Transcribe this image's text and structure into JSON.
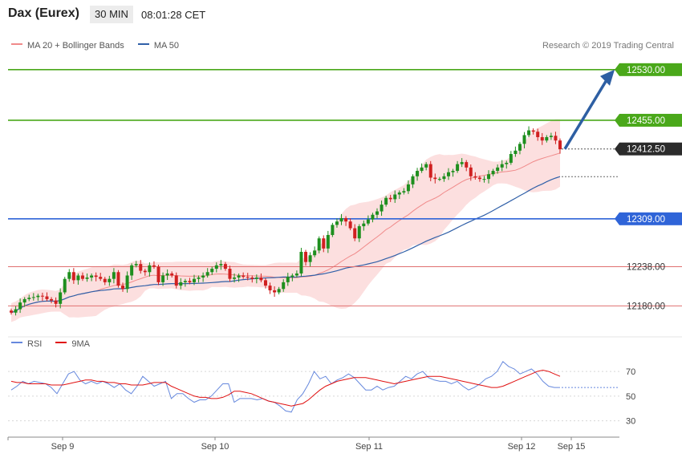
{
  "header": {
    "instrument": "Dax (Eurex)",
    "timeframe": "30 MIN",
    "time": "08:01:28 CET"
  },
  "legend": {
    "bands_label": "MA 20 + Bollinger Bands",
    "ma50_label": "MA 50",
    "rsi_label": "RSI",
    "rsi_ma_label": "9MA",
    "copyright": "Research © 2019 Trading Central"
  },
  "colors": {
    "up": "#1e8f1e",
    "down": "#d02020",
    "ma20": "#f08a8a",
    "band_fill": "#fbd4d4",
    "ma50": "#3060a8",
    "green_level": "#4aa81a",
    "blue_level": "#2f64d8",
    "red_level": "#e07070",
    "rsi": "#6688dd",
    "rsi_ma": "#e01010",
    "arrow": "#2e5fa3"
  },
  "chart_data": [
    {
      "type": "line",
      "subtype": "candlestick",
      "x_ticks": [
        "Sep 9",
        "Sep 10",
        "Sep 11",
        "Sep 12",
        "Sep 15"
      ],
      "ylim": [
        12140,
        12550
      ],
      "levels": [
        {
          "value": 12530,
          "label": "12530.00",
          "kind": "resistance"
        },
        {
          "value": 12455,
          "label": "12455.00",
          "kind": "resistance"
        },
        {
          "value": 12412.5,
          "label": "12412.50",
          "kind": "last"
        },
        {
          "value": 12309,
          "label": "12309.00",
          "kind": "pivot"
        },
        {
          "value": 12238,
          "label": "12238.00",
          "kind": "support"
        },
        {
          "value": 12180,
          "label": "12180.00",
          "kind": "support"
        }
      ],
      "target_arrow": {
        "from": 12412.5,
        "to": 12530
      },
      "closes": [
        12170,
        12175,
        12185,
        12190,
        12192,
        12193,
        12195,
        12194,
        12190,
        12188,
        12183,
        12200,
        12220,
        12230,
        12218,
        12225,
        12220,
        12222,
        12225,
        12223,
        12220,
        12215,
        12220,
        12230,
        12210,
        12205,
        12225,
        12240,
        12242,
        12232,
        12230,
        12240,
        12238,
        12215,
        12225,
        12228,
        12225,
        12210,
        12215,
        12217,
        12215,
        12220,
        12222,
        12225,
        12230,
        12235,
        12240,
        12242,
        12235,
        12220,
        12222,
        12225,
        12223,
        12222,
        12220,
        12222,
        12218,
        12210,
        12203,
        12200,
        12205,
        12215,
        12223,
        12225,
        12228,
        12260,
        12245,
        12255,
        12262,
        12280,
        12265,
        12285,
        12300,
        12305,
        12310,
        12305,
        12295,
        12280,
        12298,
        12302,
        12308,
        12315,
        12320,
        12330,
        12340,
        12338,
        12345,
        12348,
        12350,
        12360,
        12372,
        12380,
        12385,
        12390,
        12370,
        12368,
        12368,
        12372,
        12378,
        12380,
        12390,
        12393,
        12385,
        12372,
        12370,
        12368,
        12368,
        12375,
        12380,
        12385,
        12390,
        12392,
        12405,
        12410,
        12420,
        12433,
        12440,
        12438,
        12430,
        12425,
        12430,
        12432,
        12425,
        12412
      ]
    },
    {
      "type": "line",
      "series": [
        {
          "name": "RSI",
          "values": [
            55,
            58,
            62,
            60,
            62,
            61,
            60,
            57,
            52,
            60,
            68,
            70,
            63,
            60,
            62,
            60,
            62,
            60,
            57,
            60,
            55,
            52,
            58,
            66,
            62,
            58,
            60,
            62,
            48,
            52,
            52,
            48,
            45,
            47,
            47,
            50,
            55,
            60,
            60,
            45,
            48,
            48,
            48,
            47,
            48,
            46,
            45,
            42,
            38,
            37,
            47,
            52,
            60,
            70,
            64,
            66,
            60,
            63,
            65,
            68,
            65,
            60,
            55,
            55,
            58,
            55,
            57,
            58,
            62,
            66,
            64,
            68,
            70,
            65,
            63,
            62,
            62,
            60,
            62,
            58,
            55,
            57,
            60,
            64,
            66,
            70,
            78,
            74,
            72,
            68,
            70,
            72,
            68,
            62,
            58,
            57,
            57
          ]
        },
        {
          "name": "9MA",
          "values": [
            62,
            61,
            61,
            60,
            60,
            60,
            60,
            59,
            59,
            59,
            60,
            61,
            62,
            63,
            63,
            62,
            62,
            61,
            61,
            60,
            60,
            59,
            59,
            59,
            60,
            61,
            61,
            61,
            58,
            56,
            54,
            52,
            50,
            49,
            49,
            48,
            48,
            49,
            51,
            54,
            54,
            53,
            52,
            50,
            48,
            46,
            45,
            44,
            43,
            42,
            43,
            44,
            47,
            51,
            55,
            58,
            60,
            62,
            63,
            64,
            65,
            65,
            65,
            64,
            63,
            62,
            61,
            60,
            61,
            62,
            63,
            64,
            65,
            66,
            66,
            66,
            65,
            64,
            63,
            62,
            61,
            60,
            59,
            58,
            57,
            57,
            58,
            60,
            62,
            64,
            66,
            68,
            70,
            71,
            70,
            68,
            66
          ]
        }
      ],
      "ylim": [
        20,
        85
      ],
      "y_ticks": [
        30,
        50,
        70
      ]
    }
  ]
}
